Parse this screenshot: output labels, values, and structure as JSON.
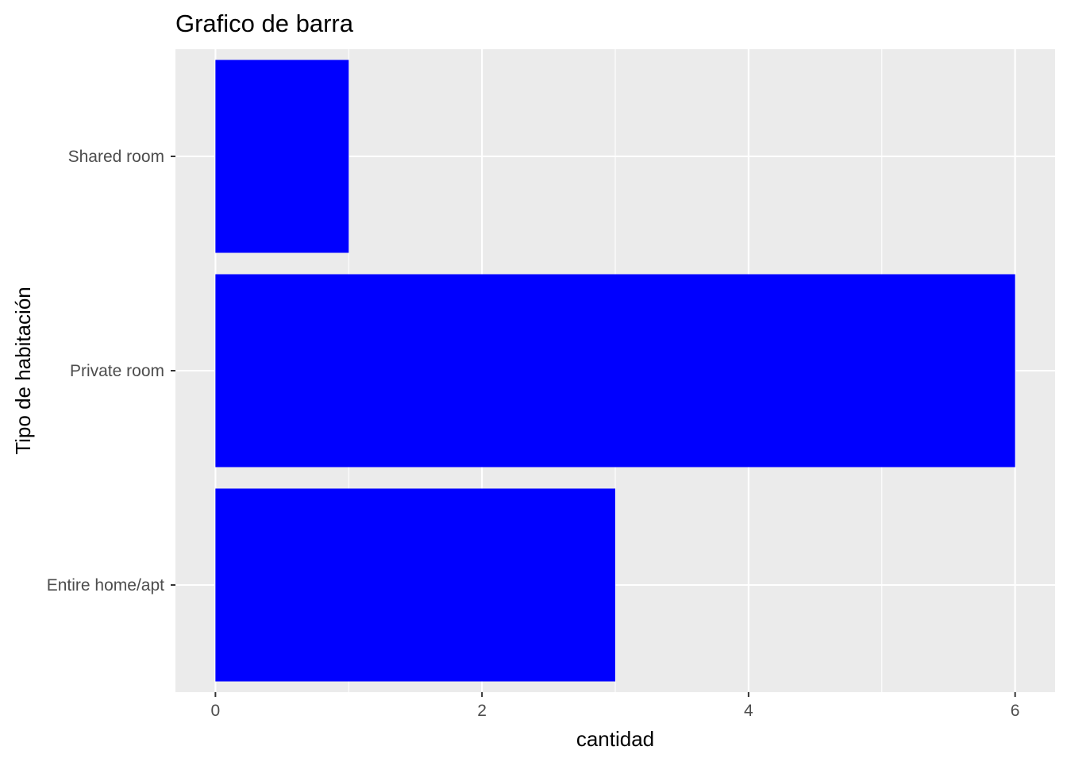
{
  "chart_data": {
    "type": "bar",
    "orientation": "horizontal",
    "title": "Grafico de barra",
    "xlabel": "cantidad",
    "ylabel": "Tipo de habitación",
    "categories": [
      "Entire home/apt",
      "Private room",
      "Shared room"
    ],
    "values": [
      3,
      6,
      1
    ],
    "xlim": [
      -0.3,
      6.3
    ],
    "x_ticks": [
      0,
      2,
      4,
      6
    ],
    "grid": true,
    "bar_color": "#0000ff",
    "panel_background": "#ebebeb",
    "grid_color": "#ffffff"
  }
}
